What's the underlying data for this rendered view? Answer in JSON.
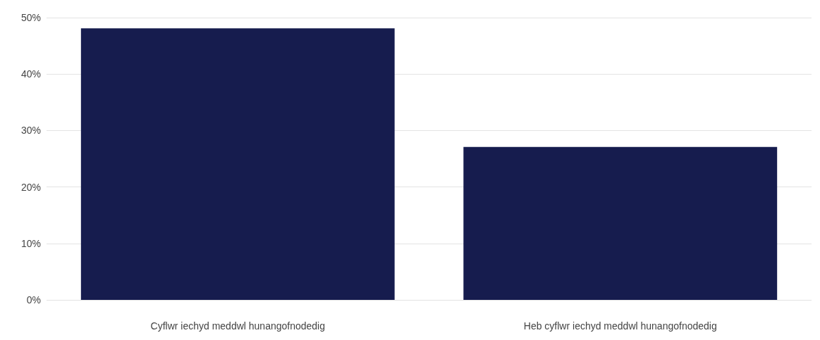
{
  "chart_data": {
    "type": "bar",
    "categories": [
      "Cyflwr iechyd meddwl hunangofnodedig",
      "Heb cyflwr iechyd meddwl hunangofnodedig"
    ],
    "values": [
      48.1,
      27.1
    ],
    "color": "#161c4e",
    "ylim": [
      0,
      50
    ],
    "yticks": [
      {
        "value": 0,
        "label": "0%"
      },
      {
        "value": 10,
        "label": "10%"
      },
      {
        "value": 20,
        "label": "20%"
      },
      {
        "value": 30,
        "label": "30%"
      },
      {
        "value": 40,
        "label": "40%"
      },
      {
        "value": 50,
        "label": "50%"
      }
    ],
    "grid": "y"
  }
}
